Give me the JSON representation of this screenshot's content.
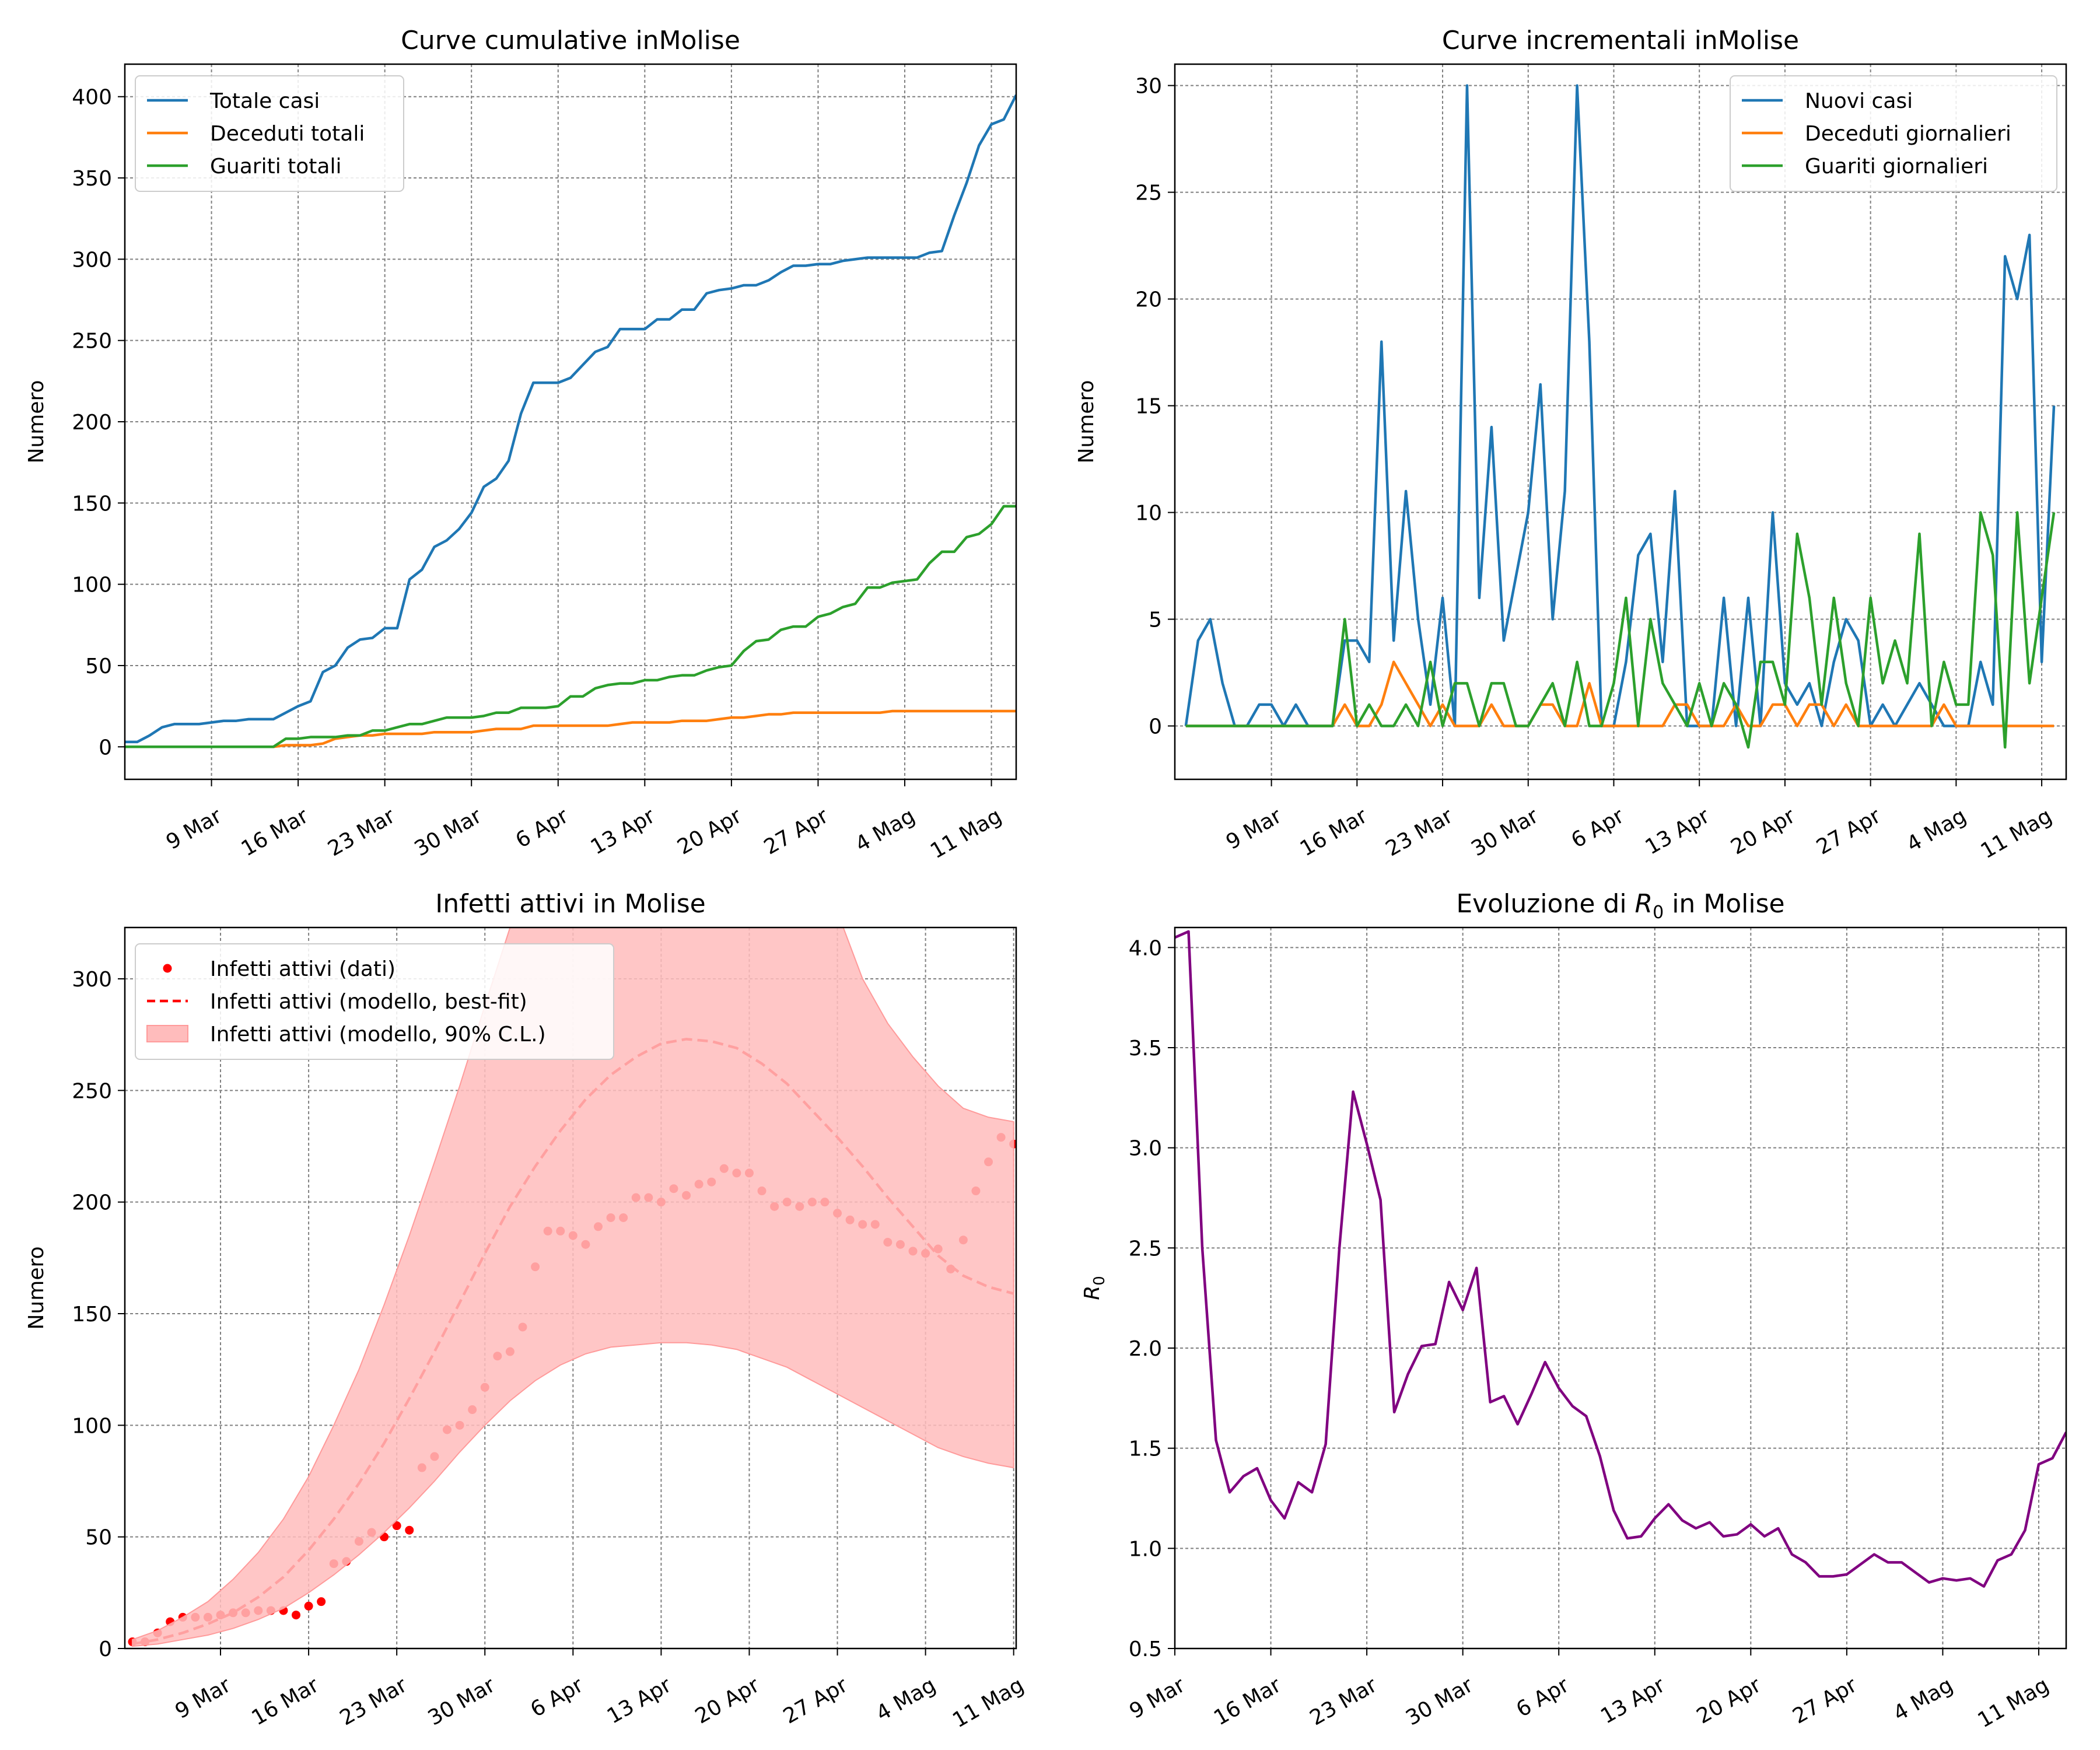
{
  "colors": {
    "blue": "#1f77b4",
    "orange": "#ff7f0e",
    "green": "#2ca02c",
    "red": "#ff0000",
    "band": "#ffbcbc",
    "purple": "#800080",
    "grid": "#808080"
  },
  "chart_data": [
    {
      "id": "cumulative",
      "type": "line",
      "title": "Curve cumulative inMolise",
      "ylabel": "Numero",
      "x_start": "2020-03-02",
      "x_ticks": [
        "9 Mar",
        "16 Mar",
        "23 Mar",
        "30 Mar",
        "6 Apr",
        "13 Apr",
        "20 Apr",
        "27 Apr",
        "4 Mag",
        "11 Mag"
      ],
      "xlim": [
        0,
        72
      ],
      "ylim": [
        -20,
        420
      ],
      "y_ticks": [
        0,
        50,
        100,
        150,
        200,
        250,
        300,
        350,
        400
      ],
      "grid": true,
      "legend": "top-left",
      "series": [
        {
          "name": "Totale casi",
          "color": "blue",
          "values": [
            3,
            3,
            7,
            12,
            14,
            14,
            14,
            15,
            16,
            16,
            17,
            17,
            17,
            21,
            25,
            28,
            46,
            50,
            61,
            66,
            67,
            73,
            73,
            103,
            109,
            123,
            127,
            134,
            144,
            160,
            165,
            176,
            205,
            224,
            224,
            224,
            227,
            235,
            243,
            246,
            257,
            257,
            257,
            263,
            263,
            269,
            269,
            279,
            281,
            282,
            284,
            284,
            287,
            292,
            296,
            296,
            297,
            297,
            299,
            300,
            301,
            301,
            301,
            301,
            301,
            304,
            305,
            327,
            347,
            370,
            383,
            386,
            401
          ]
        },
        {
          "name": "Deceduti totali",
          "color": "orange",
          "values": [
            0,
            0,
            0,
            0,
            0,
            0,
            0,
            0,
            0,
            0,
            0,
            0,
            0,
            1,
            1,
            1,
            2,
            5,
            6,
            7,
            7,
            8,
            8,
            8,
            8,
            9,
            9,
            9,
            9,
            10,
            11,
            11,
            11,
            13,
            13,
            13,
            13,
            13,
            13,
            13,
            14,
            15,
            15,
            15,
            15,
            16,
            16,
            16,
            17,
            18,
            18,
            19,
            20,
            20,
            21,
            21,
            21,
            21,
            21,
            21,
            21,
            21,
            22,
            22,
            22,
            22,
            22,
            22,
            22,
            22,
            22,
            22,
            22
          ]
        },
        {
          "name": "Guariti totali",
          "color": "green",
          "values": [
            0,
            0,
            0,
            0,
            0,
            0,
            0,
            0,
            0,
            0,
            0,
            0,
            0,
            5,
            5,
            6,
            6,
            6,
            7,
            7,
            10,
            10,
            12,
            14,
            14,
            16,
            18,
            18,
            18,
            19,
            21,
            21,
            24,
            24,
            24,
            25,
            31,
            31,
            36,
            38,
            39,
            39,
            41,
            41,
            43,
            44,
            44,
            47,
            49,
            50,
            59,
            65,
            66,
            72,
            74,
            74,
            80,
            82,
            86,
            88,
            98,
            98,
            101,
            102,
            103,
            113,
            120,
            120,
            129,
            131,
            137,
            148,
            148
          ]
        }
      ]
    },
    {
      "id": "incremental",
      "type": "line",
      "title": "Curve incrementali inMolise",
      "ylabel": "Numero",
      "x_start": "2020-03-02",
      "x_ticks": [
        "9 Mar",
        "16 Mar",
        "23 Mar",
        "30 Mar",
        "6 Apr",
        "13 Apr",
        "20 Apr",
        "27 Apr",
        "4 Mag",
        "11 Mag"
      ],
      "xlim": [
        -0.9,
        72
      ],
      "ylim": [
        -2.5,
        31
      ],
      "y_ticks": [
        0,
        5,
        10,
        15,
        20,
        25,
        30
      ],
      "grid": true,
      "legend": "top-right",
      "series": [
        {
          "name": "Nuovi casi",
          "color": "blue",
          "values": [
            0,
            4,
            5,
            2,
            0,
            0,
            1,
            1,
            0,
            1,
            0,
            0,
            0,
            4,
            4,
            3,
            18,
            4,
            11,
            5,
            1,
            6,
            0,
            30,
            6,
            14,
            4,
            7,
            10,
            16,
            5,
            11,
            30,
            18,
            0,
            0,
            3,
            8,
            9,
            3,
            11,
            0,
            0,
            0,
            6,
            0,
            6,
            0,
            10,
            2,
            1,
            2,
            0,
            3,
            5,
            4,
            0,
            1,
            0,
            1,
            2,
            1,
            0,
            0,
            0,
            3,
            1,
            22,
            20,
            23,
            3,
            15
          ]
        },
        {
          "name": "Deceduti giornalieri",
          "color": "orange",
          "values": [
            0,
            0,
            0,
            0,
            0,
            0,
            0,
            0,
            0,
            0,
            0,
            0,
            0,
            1,
            0,
            0,
            1,
            3,
            2,
            1,
            0,
            1,
            0,
            0,
            0,
            1,
            0,
            0,
            0,
            1,
            1,
            0,
            0,
            2,
            0,
            0,
            0,
            0,
            0,
            0,
            1,
            1,
            0,
            0,
            0,
            1,
            0,
            0,
            1,
            1,
            0,
            1,
            1,
            0,
            1,
            0,
            0,
            0,
            0,
            0,
            0,
            0,
            1,
            0,
            0,
            0,
            0,
            0,
            0,
            0,
            0,
            0
          ]
        },
        {
          "name": "Guariti giornalieri",
          "color": "green",
          "values": [
            0,
            0,
            0,
            0,
            0,
            0,
            0,
            0,
            0,
            0,
            0,
            0,
            0,
            5,
            0,
            1,
            0,
            0,
            1,
            0,
            3,
            0,
            2,
            2,
            0,
            2,
            2,
            0,
            0,
            1,
            2,
            0,
            3,
            0,
            0,
            2,
            6,
            0,
            5,
            2,
            1,
            0,
            2,
            0,
            2,
            1,
            -1,
            3,
            3,
            1,
            9,
            6,
            1,
            6,
            2,
            0,
            6,
            2,
            4,
            2,
            9,
            0,
            3,
            1,
            1,
            10,
            8,
            -1,
            10,
            2,
            6,
            10
          ]
        }
      ]
    },
    {
      "id": "active",
      "type": "scatter",
      "title": "Infetti attivi in Molise",
      "ylabel": "Numero",
      "x_start": "2020-03-02",
      "x_ticks": [
        "9 Mar",
        "16 Mar",
        "23 Mar",
        "30 Mar",
        "6 Apr",
        "13 Apr",
        "20 Apr",
        "27 Apr",
        "4 Mag",
        "11 Mag"
      ],
      "xlim": [
        -0.6,
        70.2
      ],
      "ylim": [
        0,
        323
      ],
      "y_ticks": [
        0,
        50,
        100,
        150,
        200,
        250,
        300
      ],
      "grid": true,
      "legend": "top-left",
      "series": [
        {
          "name": "Infetti attivi (dati)",
          "color": "red",
          "kind": "points",
          "x": [
            0,
            1,
            2,
            3,
            4,
            5,
            6,
            7,
            8,
            9,
            10,
            11,
            12,
            13,
            14,
            15,
            16,
            17,
            18,
            19,
            20,
            21,
            22,
            23,
            24,
            25,
            26,
            27,
            28,
            29,
            30,
            31,
            32,
            33,
            34,
            35,
            36,
            37,
            38,
            39,
            40,
            41,
            42,
            43,
            44,
            45,
            46,
            47,
            48,
            49,
            50,
            51,
            52,
            53,
            54,
            55,
            56,
            57,
            58,
            59,
            60,
            61,
            62,
            63,
            64,
            65,
            66,
            67,
            68,
            69,
            70
          ],
          "values": [
            3,
            3,
            7,
            12,
            14,
            14,
            14,
            15,
            16,
            16,
            17,
            17,
            17,
            15,
            19,
            21,
            38,
            39,
            48,
            52,
            50,
            55,
            53,
            81,
            86,
            98,
            100,
            107,
            117,
            131,
            133,
            144,
            171,
            187,
            187,
            185,
            181,
            189,
            193,
            193,
            202,
            202,
            200,
            206,
            203,
            208,
            209,
            215,
            213,
            213,
            205,
            198,
            200,
            198,
            200,
            200,
            195,
            192,
            190,
            190,
            182,
            181,
            178,
            177,
            179,
            170,
            183,
            205,
            218,
            229,
            226
          ]
        },
        {
          "name": "Infetti attivi (modello, best-fit)",
          "color": "red",
          "kind": "dashed",
          "x": [
            0,
            2,
            4,
            6,
            8,
            10,
            12,
            14,
            16,
            18,
            20,
            22,
            24,
            26,
            28,
            30,
            32,
            34,
            36,
            38,
            40,
            42,
            44,
            46,
            48,
            50,
            52,
            54,
            56,
            58,
            60,
            62,
            64,
            66,
            68,
            70
          ],
          "values": [
            2,
            4,
            7,
            11,
            16,
            23,
            32,
            44,
            58,
            74,
            92,
            112,
            133,
            155,
            177,
            198,
            216,
            232,
            246,
            257,
            265,
            271,
            273,
            272,
            269,
            262,
            253,
            241,
            229,
            216,
            202,
            189,
            176,
            167,
            162,
            159
          ]
        },
        {
          "name": "Infetti attivi (modello, 90% C.L.)",
          "color": "band",
          "kind": "band",
          "x": [
            0,
            2,
            4,
            6,
            8,
            10,
            12,
            14,
            16,
            18,
            20,
            22,
            24,
            26,
            28,
            30,
            32,
            34,
            36,
            38,
            40,
            42,
            44,
            46,
            48,
            50,
            52,
            54,
            56,
            58,
            60,
            62,
            64,
            66,
            68,
            70
          ],
          "lower": [
            1,
            2,
            4,
            6,
            9,
            13,
            18,
            25,
            33,
            42,
            52,
            63,
            75,
            88,
            100,
            111,
            120,
            127,
            132,
            135,
            136,
            137,
            137,
            136,
            134,
            130,
            126,
            120,
            114,
            108,
            102,
            96,
            90,
            86,
            83,
            81
          ],
          "upper": [
            4,
            8,
            14,
            21,
            31,
            43,
            58,
            77,
            100,
            125,
            154,
            185,
            218,
            252,
            288,
            323,
            360,
            390,
            420,
            440,
            460,
            470,
            470,
            460,
            440,
            420,
            390,
            360,
            330,
            300,
            280,
            265,
            252,
            242,
            238,
            236
          ]
        }
      ]
    },
    {
      "id": "r0",
      "type": "line",
      "title_pre": "Evoluzione di ",
      "title_sym": "R",
      "title_sub": "0",
      "title_post": " in Molise",
      "ylabel_sym": "R",
      "ylabel_sub": "0",
      "x_start": "2020-03-09",
      "x_ticks": [
        "9 Mar",
        "16 Mar",
        "23 Mar",
        "30 Mar",
        "6 Apr",
        "13 Apr",
        "20 Apr",
        "27 Apr",
        "4 Mag",
        "11 Mag"
      ],
      "xlim": [
        0,
        65
      ],
      "ylim": [
        0.5,
        4.1
      ],
      "y_ticks": [
        "0.5",
        "1.0",
        "1.5",
        "2.0",
        "2.5",
        "3.0",
        "3.5",
        "4.0"
      ],
      "grid": true,
      "series": [
        {
          "name": "R0",
          "color": "purple",
          "values": [
            4.05,
            4.08,
            2.5,
            1.54,
            1.28,
            1.36,
            1.4,
            1.24,
            1.15,
            1.33,
            1.28,
            1.52,
            2.5,
            3.28,
            3.02,
            2.74,
            1.68,
            1.87,
            2.01,
            2.02,
            2.33,
            2.19,
            2.4,
            1.73,
            1.76,
            1.62,
            1.77,
            1.93,
            1.8,
            1.71,
            1.66,
            1.46,
            1.19,
            1.05,
            1.06,
            1.15,
            1.22,
            1.14,
            1.1,
            1.13,
            1.06,
            1.07,
            1.12,
            1.06,
            1.1,
            0.97,
            0.93,
            0.86,
            0.86,
            0.87,
            0.92,
            0.97,
            0.93,
            0.93,
            0.88,
            0.83,
            0.85,
            0.84,
            0.85,
            0.81,
            0.94,
            0.97,
            1.09,
            1.42,
            1.45,
            1.58
          ]
        }
      ]
    }
  ]
}
